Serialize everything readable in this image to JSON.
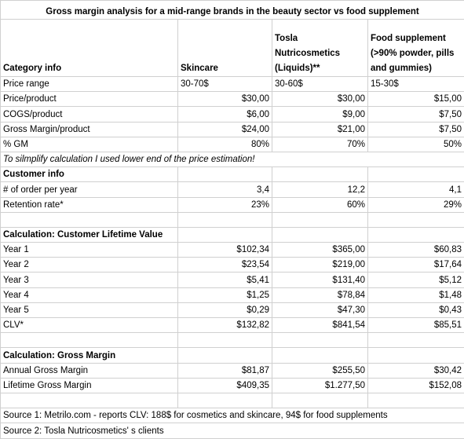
{
  "title": "Gross margin analysis for a mid-range brands in the beauty sector vs food supplement",
  "header": [
    "Category info",
    "Skincare",
    "Tosla Nutricosmetics (Liquids)**",
    "Food supplement (>90% powder, pills and gummies)"
  ],
  "sections": [
    {
      "rows": [
        [
          "Price range",
          "30-70$",
          "30-60$",
          "15-30$"
        ],
        [
          "Price/product",
          "$30,00",
          "$30,00",
          "$15,00"
        ],
        [
          "COGS/product",
          "$6,00",
          "$9,00",
          "$7,50"
        ],
        [
          "Gross Margin/product",
          "$24,00",
          "$21,00",
          "$7,50"
        ],
        [
          "% GM",
          "80%",
          "70%",
          "50%"
        ]
      ],
      "note": "To silmplify calculation I used lower end of the price estimation!"
    },
    {
      "heading": "Customer info",
      "rows": [
        [
          "# of order per year",
          "3,4",
          "12,2",
          "4,1"
        ],
        [
          "Retention rate*",
          "23%",
          "60%",
          "29%"
        ]
      ]
    },
    {
      "heading": "Calculation: Customer Lifetime Value",
      "rows": [
        [
          "Year 1",
          "$102,34",
          "$365,00",
          "$60,83"
        ],
        [
          "Year 2",
          "$23,54",
          "$219,00",
          "$17,64"
        ],
        [
          "Year 3",
          "$5,41",
          "$131,40",
          "$5,12"
        ],
        [
          "Year 4",
          "$1,25",
          "$78,84",
          "$1,48"
        ],
        [
          "Year 5",
          "$0,29",
          "$47,30",
          "$0,43"
        ],
        [
          "CLV*",
          "$132,82",
          "$841,54",
          "$85,51"
        ]
      ]
    },
    {
      "heading": "Calculation: Gross Margin",
      "rows": [
        [
          "Annual Gross Margin",
          "$81,87",
          "$255,50",
          "$30,42"
        ],
        [
          "Lifetime Gross Margin",
          "$409,35",
          "$1.277,50",
          "$152,08"
        ]
      ]
    }
  ],
  "sources": [
    "Source 1: Metrilo.com - reports CLV: 188$ for cosmetics and skincare, 94$ for food supplements",
    "Source 2: Tosla Nutricosmetics' s clients"
  ]
}
